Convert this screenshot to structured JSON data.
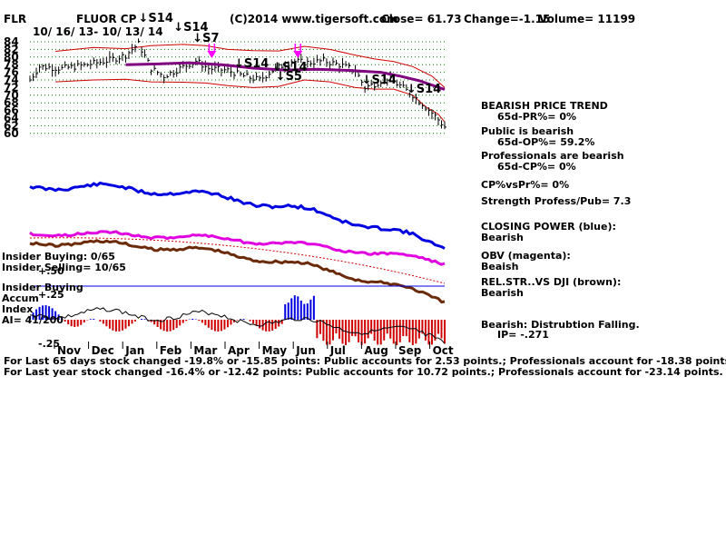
{
  "header": {
    "ticker": "FLR",
    "company": "FLUOR CP",
    "date_range": "10/ 16/ 13- 10/ 13/ 14",
    "copyright": "(C)2014 www.tigersoft.com",
    "close": "Close=  61.73",
    "change": "Change=-1.15",
    "volume": "Volume= 11199"
  },
  "right_panel": {
    "l1": "BEARISH PRICE TREND",
    "l2": "65d-PR%= 0%",
    "l3": "Public is bearish",
    "l4": "65d-OP%= 59.2%",
    "l5": "Professionals are bearish",
    "l6": "65d-CP%= 0%",
    "l7": "CP%vsPr%=  0%",
    "l8": "Strength Profess/Pub= 7.3",
    "l9": "CLOSING POWER (blue):",
    "l10": "Bearish",
    "l11": "OBV (magenta):",
    "l12": "Beaish",
    "l13": "REL.STR..VS DJI (brown):",
    "l14": "Bearish",
    "l15": "Bearish: Distrubtion Falling.",
    "l16": "IP= -.271"
  },
  "left_panel": {
    "insider_buying": "Insider Buying: 0/65",
    "insider_selling": "Insider Selling= 10/65",
    "insider_buying2": "Insider Buying",
    "accum": "Accum",
    "index": "Index",
    "ai": "AI= 41/200"
  },
  "footer": {
    "line1": "For Last 65 days stock changed -19.8% or -15.85 points:  Public accounts for  2.53 points.;  Professionals account for -18.38 points.",
    "line2": "For Last year stock changed -16.4% or -12.42 points:  Public accounts for  10.72 points.;  Professionals account for -23.14 points."
  },
  "colors": {
    "closing_power": "#0000e0",
    "obv": "#e000e0",
    "rel_strength": "#6b2a0a",
    "ma_purple": "#800080",
    "band_red": "#d00000",
    "signal_magenta": "#ff00ff",
    "grid_green": "#008000"
  },
  "chart_data": {
    "type": "line",
    "price_axis": {
      "ylim": [
        58,
        85
      ],
      "ticks": [
        "84",
        "82",
        "80",
        "78",
        "76",
        "74",
        "72",
        "70",
        "68",
        "66",
        "64",
        "62",
        "60"
      ]
    },
    "accum_ticks": [
      "+.50",
      "+.25",
      "-.25"
    ],
    "x_months": [
      "Nov",
      "Dec",
      "Jan",
      "Feb",
      "Mar",
      "Apr",
      "May",
      "Jun",
      "Jul",
      "Aug",
      "Sep",
      "Oct"
    ],
    "signals": [
      {
        "label": "S14",
        "day": 34
      },
      {
        "label": "S14",
        "day": 45
      },
      {
        "label": "S7",
        "day": 51
      },
      {
        "label": "S14",
        "day": 64
      },
      {
        "label": "S14",
        "day": 76
      },
      {
        "label": "S5",
        "day": 77
      },
      {
        "label": "S14",
        "day": 104
      },
      {
        "label": "S14",
        "day": 118
      }
    ],
    "buy_arrows": [
      {
        "day": 57
      },
      {
        "day": 84
      }
    ],
    "price_keypoints": [
      [
        0,
        74
      ],
      [
        3,
        77.5
      ],
      [
        10,
        77
      ],
      [
        18,
        78
      ],
      [
        25,
        79.2
      ],
      [
        30,
        80.5
      ],
      [
        34,
        83.5
      ],
      [
        38,
        77
      ],
      [
        42,
        75
      ],
      [
        47,
        77
      ],
      [
        52,
        79
      ],
      [
        56,
        77
      ],
      [
        62,
        76.5
      ],
      [
        67,
        75
      ],
      [
        72,
        74
      ],
      [
        76,
        76.5
      ],
      [
        82,
        79
      ],
      [
        87,
        78.5
      ],
      [
        92,
        79
      ],
      [
        97,
        78
      ],
      [
        102,
        76.5
      ],
      [
        105,
        72
      ],
      [
        108,
        73
      ],
      [
        112,
        74.5
      ],
      [
        116,
        72.5
      ],
      [
        120,
        70
      ],
      [
        124,
        67
      ],
      [
        127,
        64.5
      ],
      [
        130,
        61.7
      ]
    ],
    "ma65_keypoints": [
      [
        30,
        78
      ],
      [
        40,
        78.2
      ],
      [
        50,
        78.5
      ],
      [
        60,
        78
      ],
      [
        70,
        77.1
      ],
      [
        80,
        76.6
      ],
      [
        90,
        76.8
      ],
      [
        100,
        76.5
      ],
      [
        110,
        76
      ],
      [
        116,
        75
      ],
      [
        122,
        73.8
      ],
      [
        130,
        71.5
      ]
    ],
    "upper_band_keypoints": [
      [
        8,
        81.5
      ],
      [
        20,
        82.5
      ],
      [
        30,
        82.2
      ],
      [
        38,
        83
      ],
      [
        48,
        83.3
      ],
      [
        55,
        83
      ],
      [
        62,
        82
      ],
      [
        70,
        81.7
      ],
      [
        78,
        81.6
      ],
      [
        86,
        82.8
      ],
      [
        94,
        82
      ],
      [
        102,
        80.5
      ],
      [
        108,
        79.5
      ],
      [
        114,
        78.8
      ],
      [
        120,
        77.5
      ],
      [
        126,
        75
      ],
      [
        130,
        72
      ]
    ],
    "lower_band_keypoints": [
      [
        8,
        73.5
      ],
      [
        20,
        74
      ],
      [
        30,
        74.2
      ],
      [
        38,
        73.5
      ],
      [
        48,
        73.4
      ],
      [
        55,
        73.2
      ],
      [
        62,
        72.5
      ],
      [
        70,
        72
      ],
      [
        78,
        72.3
      ],
      [
        86,
        74
      ],
      [
        94,
        73.5
      ],
      [
        102,
        72
      ],
      [
        108,
        71.6
      ],
      [
        114,
        71.6
      ],
      [
        120,
        70
      ],
      [
        124,
        67
      ],
      [
        128,
        65
      ],
      [
        130,
        63
      ]
    ]
  }
}
